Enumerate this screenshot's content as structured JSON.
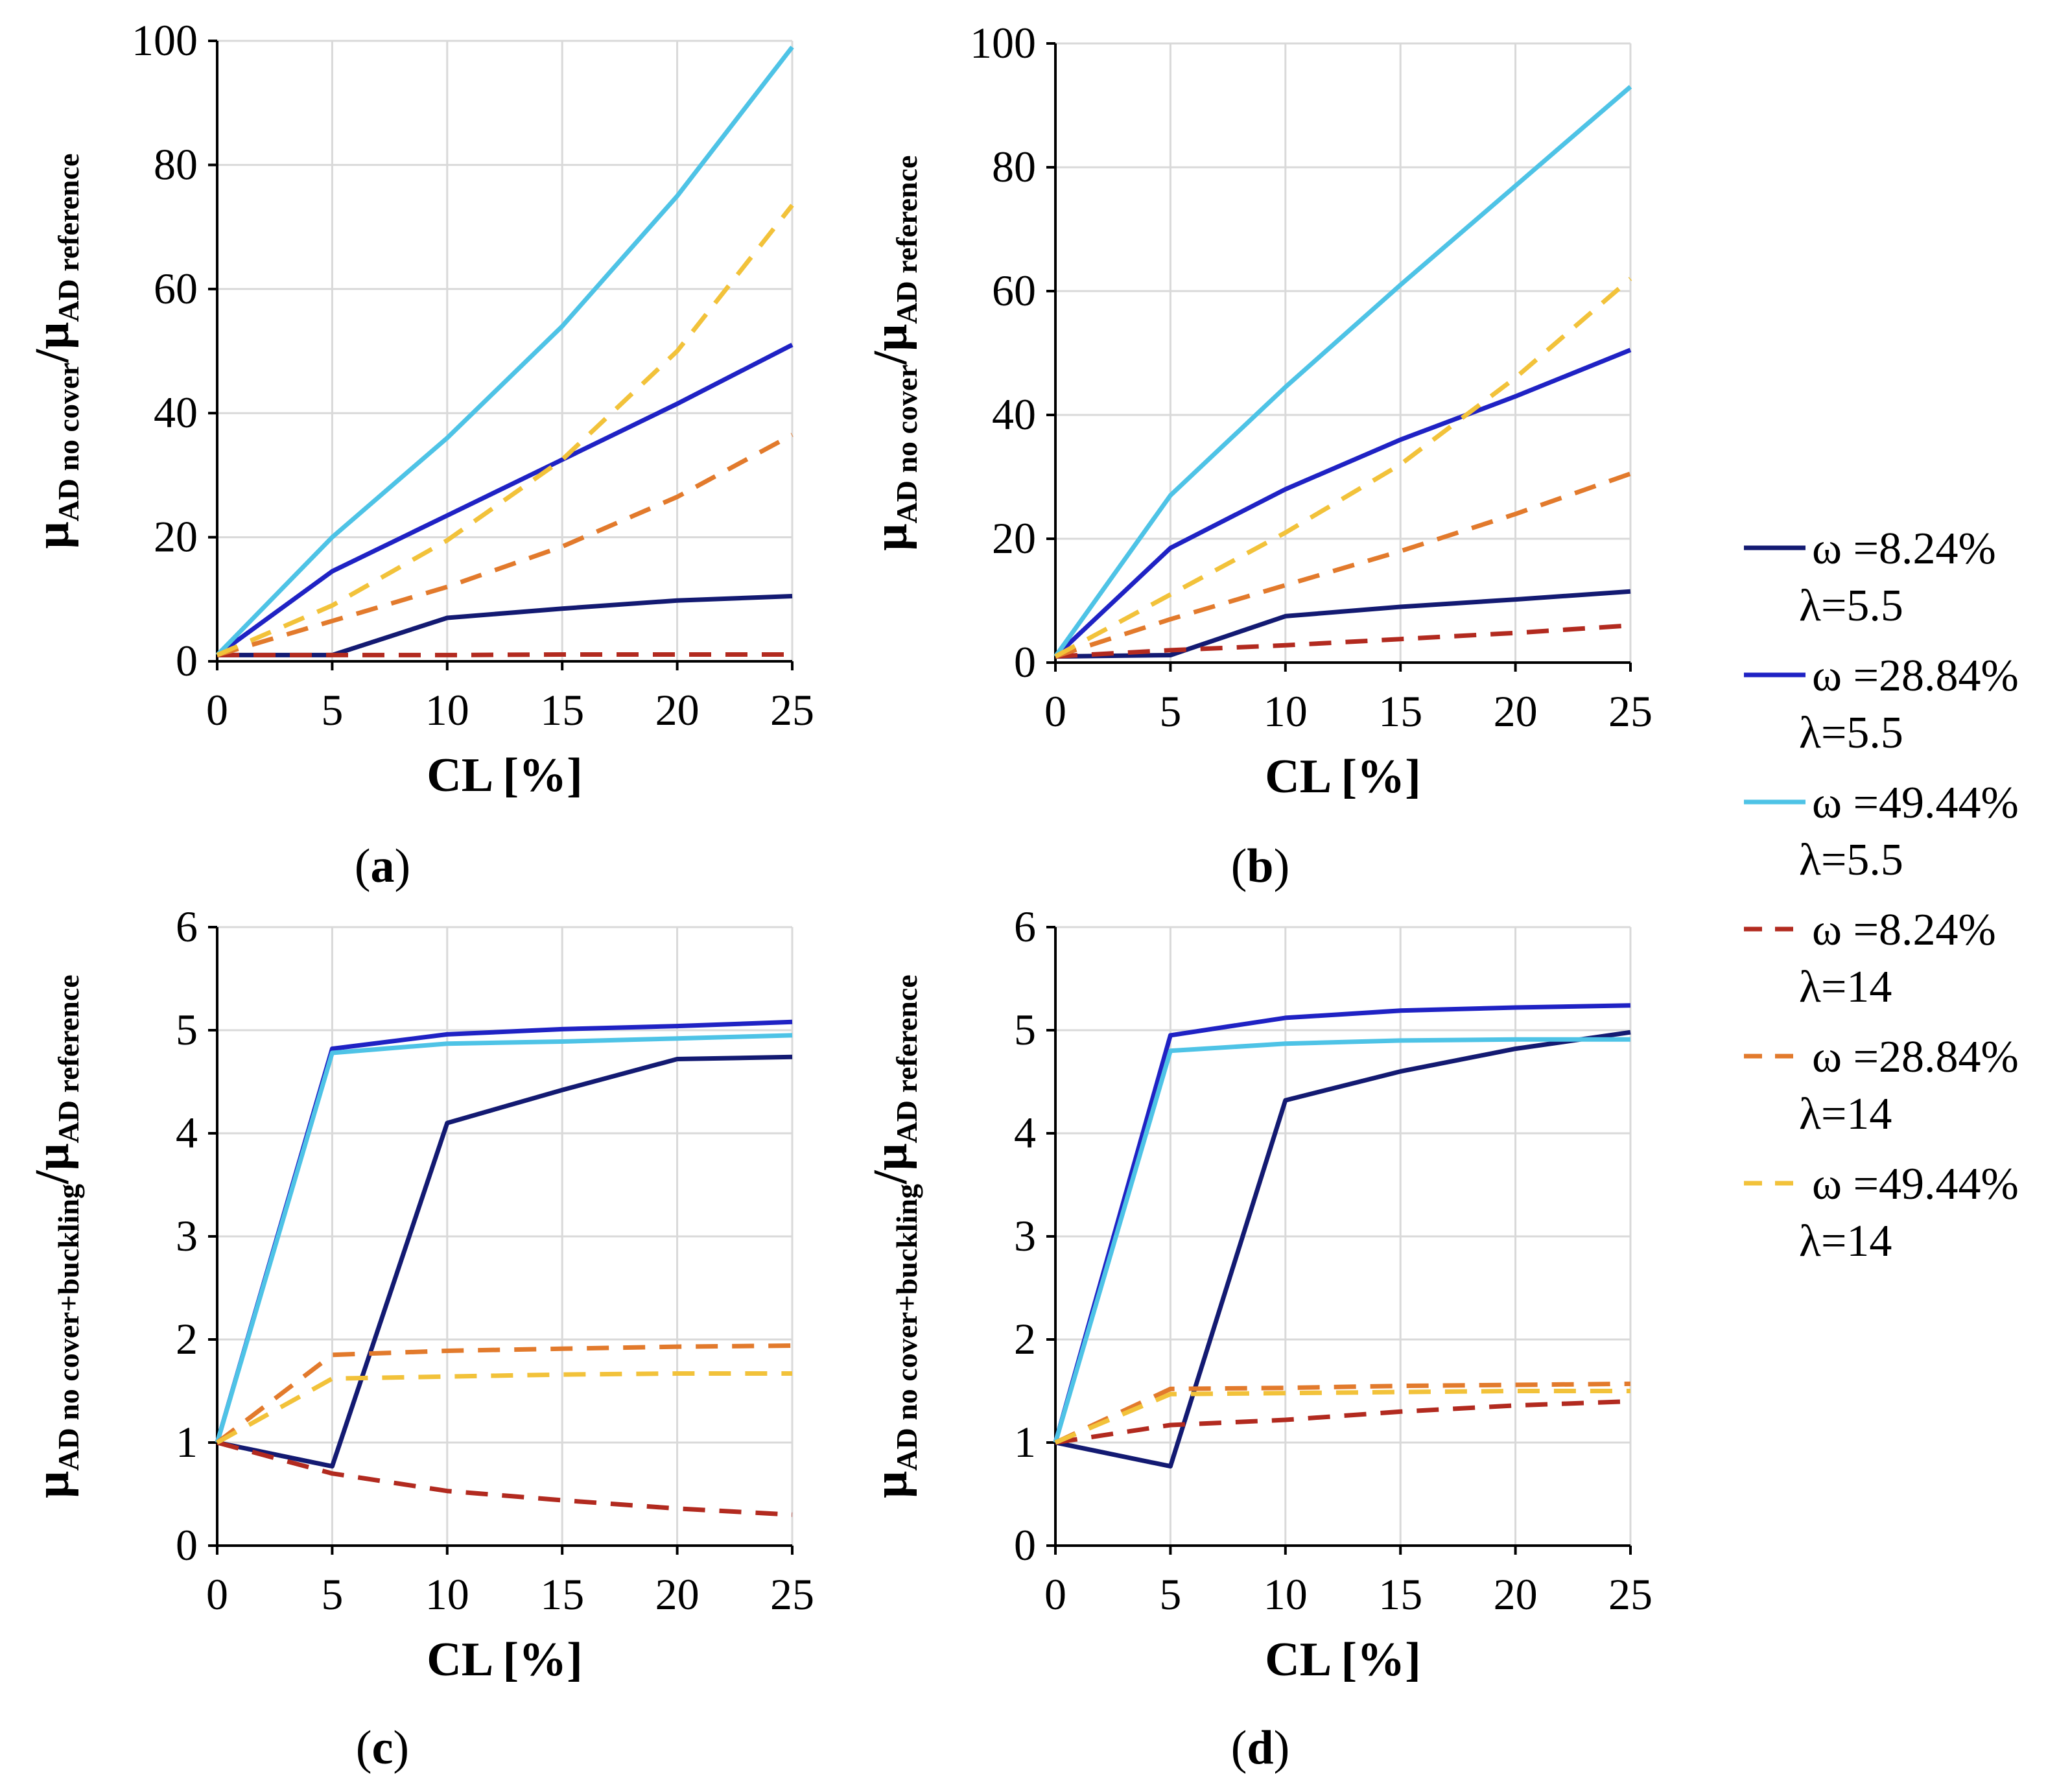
{
  "chart_data": [
    {
      "type": "line",
      "panel_label": "(a)",
      "panel_label_parts": [
        "(",
        "a",
        ")"
      ],
      "xlabel": "CL [%]",
      "ylabel": {
        "main": "μ",
        "sub1": "AD no cover",
        "slash": "/μ",
        "sub2": "AD reference"
      },
      "xlim": [
        0,
        25
      ],
      "ylim": [
        0,
        100
      ],
      "xticks": [
        0,
        5,
        10,
        15,
        20,
        25
      ],
      "yticks": [
        0,
        20,
        40,
        60,
        80,
        100
      ],
      "grid": true,
      "x": [
        0,
        5,
        10,
        15,
        20,
        25
      ],
      "series": [
        {
          "name": "ω =8.24% λ=5.5",
          "values": [
            1,
            1,
            7,
            8.5,
            9.8,
            10.5
          ]
        },
        {
          "name": "ω =28.84% λ=5.5",
          "values": [
            1,
            14.5,
            23.5,
            32.5,
            41.5,
            51
          ]
        },
        {
          "name": "ω =49.44% λ=5.5",
          "values": [
            1,
            20,
            36,
            54,
            75,
            99
          ]
        },
        {
          "name": "ω =8.24% λ=14",
          "values": [
            1,
            1,
            1,
            1.1,
            1.1,
            1.1
          ]
        },
        {
          "name": "ω =28.84% λ=14",
          "values": [
            1,
            6.5,
            12,
            18.5,
            26.5,
            36.5
          ]
        },
        {
          "name": "ω =49.44% λ=14",
          "values": [
            1,
            9,
            19.5,
            32.5,
            50,
            73.5
          ]
        }
      ]
    },
    {
      "type": "line",
      "panel_label": "(b)",
      "panel_label_parts": [
        "(",
        "b",
        ")"
      ],
      "xlabel": "CL [%]",
      "ylabel": {
        "main": "μ",
        "sub1": "AD no cover",
        "slash": "/μ",
        "sub2": "AD reference"
      },
      "xlim": [
        0,
        25
      ],
      "ylim": [
        0,
        100
      ],
      "xticks": [
        0,
        5,
        10,
        15,
        20,
        25
      ],
      "yticks": [
        0,
        20,
        40,
        60,
        80,
        100
      ],
      "grid": true,
      "x": [
        0,
        5,
        10,
        15,
        20,
        25
      ],
      "series": [
        {
          "name": "ω =8.24% λ=5.5",
          "values": [
            1,
            1.2,
            7.5,
            9,
            10.2,
            11.5
          ]
        },
        {
          "name": "ω =28.84% λ=5.5",
          "values": [
            1,
            18.5,
            28,
            36,
            43,
            50.5
          ]
        },
        {
          "name": "ω =49.44% λ=5.5",
          "values": [
            1,
            27,
            44.5,
            61,
            77,
            93
          ]
        },
        {
          "name": "ω =8.24% λ=14",
          "values": [
            1,
            2,
            2.8,
            3.8,
            4.8,
            6
          ]
        },
        {
          "name": "ω =28.84% λ=14",
          "values": [
            1,
            7,
            12.5,
            18,
            24,
            30.5
          ]
        },
        {
          "name": "ω =49.44% λ=14",
          "values": [
            1,
            11,
            21,
            32,
            46,
            62
          ]
        }
      ]
    },
    {
      "type": "line",
      "panel_label": "(c)",
      "panel_label_parts": [
        "(",
        "c",
        ")"
      ],
      "xlabel": "CL [%]",
      "ylabel": {
        "main": "μ",
        "sub1": "AD no cover+buckling",
        "slash": "/μ",
        "sub2": "AD reference"
      },
      "xlim": [
        0,
        25
      ],
      "ylim": [
        0,
        6
      ],
      "xticks": [
        0,
        5,
        10,
        15,
        20,
        25
      ],
      "yticks": [
        0,
        1,
        2,
        3,
        4,
        5,
        6
      ],
      "grid": true,
      "x": [
        0,
        5,
        10,
        15,
        20,
        25
      ],
      "series": [
        {
          "name": "ω =8.24% λ=5.5",
          "values": [
            1,
            0.77,
            4.1,
            4.42,
            4.72,
            4.74
          ]
        },
        {
          "name": "ω =28.84% λ=5.5",
          "values": [
            1,
            4.82,
            4.96,
            5.01,
            5.04,
            5.08
          ]
        },
        {
          "name": "ω =49.44% λ=5.5",
          "values": [
            1,
            4.78,
            4.87,
            4.89,
            4.92,
            4.95
          ]
        },
        {
          "name": "ω =8.24% λ=14",
          "values": [
            1,
            0.7,
            0.53,
            0.44,
            0.36,
            0.3
          ]
        },
        {
          "name": "ω =28.84% λ=14",
          "values": [
            1,
            1.85,
            1.89,
            1.91,
            1.93,
            1.94
          ]
        },
        {
          "name": "ω =49.44% λ=14",
          "values": [
            1,
            1.62,
            1.64,
            1.66,
            1.67,
            1.67
          ]
        }
      ]
    },
    {
      "type": "line",
      "panel_label": "(d)",
      "panel_label_parts": [
        "(",
        "d",
        ")"
      ],
      "xlabel": "CL [%]",
      "ylabel": {
        "main": "μ",
        "sub1": "AD no cover+buckling",
        "slash": "/μ",
        "sub2": "AD reference"
      },
      "xlim": [
        0,
        25
      ],
      "ylim": [
        0,
        6
      ],
      "xticks": [
        0,
        5,
        10,
        15,
        20,
        25
      ],
      "yticks": [
        0,
        1,
        2,
        3,
        4,
        5,
        6
      ],
      "grid": true,
      "x": [
        0,
        5,
        10,
        15,
        20,
        25
      ],
      "series": [
        {
          "name": "ω =8.24% λ=5.5",
          "values": [
            1,
            0.77,
            4.32,
            4.6,
            4.82,
            4.98
          ]
        },
        {
          "name": "ω =28.84% λ=5.5",
          "values": [
            1,
            4.95,
            5.12,
            5.19,
            5.22,
            5.24
          ]
        },
        {
          "name": "ω =49.44% λ=5.5",
          "values": [
            1,
            4.8,
            4.87,
            4.9,
            4.91,
            4.91
          ]
        },
        {
          "name": "ω =8.24% λ=14",
          "values": [
            1,
            1.17,
            1.22,
            1.3,
            1.36,
            1.4
          ]
        },
        {
          "name": "ω =28.84% λ=14",
          "values": [
            1,
            1.52,
            1.53,
            1.55,
            1.56,
            1.57
          ]
        },
        {
          "name": "ω =49.44% λ=14",
          "values": [
            1,
            1.47,
            1.48,
            1.49,
            1.5,
            1.5
          ]
        }
      ]
    }
  ],
  "legend": {
    "position": "right",
    "entries": [
      {
        "line1": "ω =8.24%",
        "line2": "λ=5.5",
        "color": "#131a72",
        "dash": false
      },
      {
        "line1": "ω =28.84%",
        "line2": "λ=5.5",
        "color": "#1f22c4",
        "dash": false
      },
      {
        "line1": "ω =49.44%",
        "line2": "λ=5.5",
        "color": "#4ec3e6",
        "dash": false
      },
      {
        "line1": "ω =8.24%",
        "line2": "λ=14",
        "color": "#b22a1f",
        "dash": true
      },
      {
        "line1": "ω =28.84%",
        "line2": "λ=14",
        "color": "#e27a2c",
        "dash": true
      },
      {
        "line1": "ω =49.44%",
        "line2": "λ=14",
        "color": "#f2c23a",
        "dash": true
      }
    ]
  },
  "colors": {
    "grid": "#d9d9d9",
    "axis": "#000000"
  }
}
